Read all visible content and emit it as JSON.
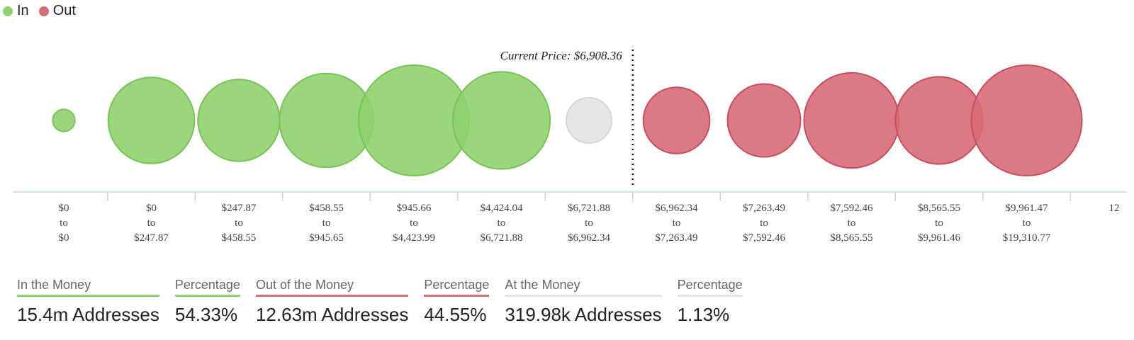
{
  "legend": [
    {
      "label": "In",
      "color": "#8ed16e"
    },
    {
      "label": "Out",
      "color": "#d76b78"
    }
  ],
  "chart_data": {
    "type": "bubble",
    "annotation": {
      "label": "Current Price: $6,908.36",
      "price": 6908.36
    },
    "bins": [
      {
        "low": "$0",
        "high": "$0",
        "group": "in",
        "size": 0.2
      },
      {
        "low": "$0",
        "high": "$247.87",
        "group": "in",
        "size": 0.78
      },
      {
        "low": "$247.87",
        "high": "$458.55",
        "group": "in",
        "size": 0.74
      },
      {
        "low": "$458.55",
        "high": "$945.65",
        "group": "in",
        "size": 0.85
      },
      {
        "low": "$945.66",
        "high": "$4,423.99",
        "group": "in",
        "size": 1.0
      },
      {
        "low": "$4,424.04",
        "high": "$6,721.88",
        "group": "in",
        "size": 0.88
      },
      {
        "low": "$6,721.88",
        "high": "$6,962.34",
        "group": "at",
        "size": 0.41
      },
      {
        "low": "$6,962.34",
        "high": "$7,263.49",
        "group": "out",
        "size": 0.6
      },
      {
        "low": "$7,263.49",
        "high": "$7,592.46",
        "group": "out",
        "size": 0.66
      },
      {
        "low": "$7,592.46",
        "high": "$8,565.55",
        "group": "out",
        "size": 0.86
      },
      {
        "low": "$8,565.55",
        "high": "$9,961.46",
        "group": "out",
        "size": 0.79
      },
      {
        "low": "$9,961.47",
        "high": "$19,310.77",
        "group": "out",
        "size": 1.0
      }
    ],
    "truncated_label": "12",
    "colors": {
      "in": "#8ed16e",
      "out": "#d76b78",
      "at": "#e3e3e3"
    }
  },
  "summary": [
    {
      "label": "In the Money",
      "value": "15.4m Addresses",
      "color": "#8ed16e"
    },
    {
      "label": "Percentage",
      "value": "54.33%",
      "color": "#8ed16e"
    },
    {
      "label": "Out of the Money",
      "value": "12.63m Addresses",
      "color": "#d76b78"
    },
    {
      "label": "Percentage",
      "value": "44.55%",
      "color": "#d76b78"
    },
    {
      "label": "At the Money",
      "value": "319.98k Addresses",
      "color": "#e3e3e3"
    },
    {
      "label": "Percentage",
      "value": "1.13%",
      "color": "#e3e3e3"
    }
  ]
}
